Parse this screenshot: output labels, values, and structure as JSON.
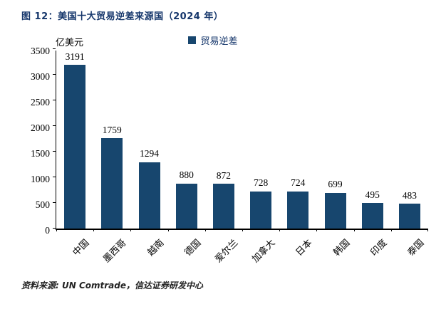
{
  "title": "图 12：美国十大贸易逆差来源国（2024 年）",
  "legend": "贸易逆差",
  "unit_label": "亿美元",
  "source": "资料来源: UN Comtrade，信达证券研发中心",
  "colors": {
    "bar": "#17466E",
    "accent_text": "#15366B",
    "axis": "#000000"
  },
  "chart_data": {
    "type": "bar",
    "title": "美国十大贸易逆差来源国（2024年）",
    "series_name": "贸易逆差",
    "categories": [
      "中国",
      "墨西哥",
      "越南",
      "德国",
      "爱尔兰",
      "加拿大",
      "日本",
      "韩国",
      "印度",
      "泰国"
    ],
    "values": [
      3191,
      1759,
      1294,
      880,
      872,
      728,
      724,
      699,
      495,
      483
    ],
    "ylabel": "亿美元",
    "ylim": [
      0,
      3500
    ],
    "ytick_step": 500,
    "grid": false,
    "legend_position": "top-center",
    "data_labels": true
  }
}
